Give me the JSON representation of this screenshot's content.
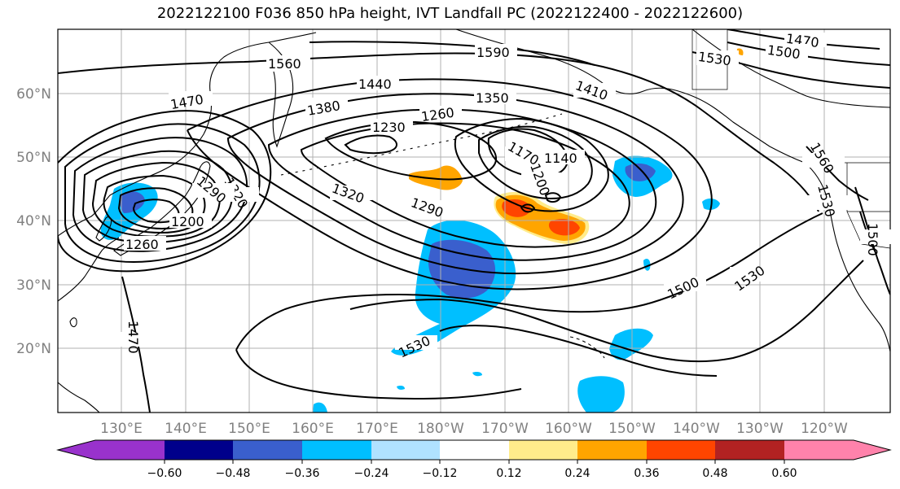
{
  "title": "2022122100 F036 850 hPa height, IVT Landfall PC (2022122400 - 2022122600)",
  "map": {
    "lat_ticks": [
      "60°N",
      "50°N",
      "40°N",
      "30°N",
      "20°N"
    ],
    "lon_ticks": [
      "130°E",
      "140°E",
      "150°E",
      "160°E",
      "170°E",
      "180°W",
      "170°W",
      "160°W",
      "150°W",
      "140°W",
      "130°W",
      "120°W"
    ],
    "contour_labels": [
      "1560",
      "1590",
      "1470",
      "1500",
      "1530",
      "1470",
      "1440",
      "1350",
      "1380",
      "1410",
      "1230",
      "1260",
      "1170",
      "1140",
      "1200",
      "1320",
      "1290",
      "1320",
      "1290",
      "1200",
      "1260",
      "1500",
      "1530",
      "1530",
      "1560",
      "1530",
      "1500",
      "1470"
    ],
    "colors": {
      "neg_060": "#9932cc",
      "neg_048": "#00008b",
      "neg_036": "#3a5fcd",
      "neg_024": "#00bfff",
      "neg_012": "#b0e2ff",
      "zero": "#ffffff",
      "pos_012": "#ffec8b",
      "pos_024": "#ffa500",
      "pos_036": "#ff4500",
      "pos_048": "#b22222",
      "pos_060": "#ff82ab"
    }
  },
  "colorbar": {
    "ticks": [
      "−0.60",
      "−0.48",
      "−0.36",
      "−0.24",
      "−0.12",
      "0.12",
      "0.24",
      "0.36",
      "0.48",
      "0.60"
    ]
  }
}
